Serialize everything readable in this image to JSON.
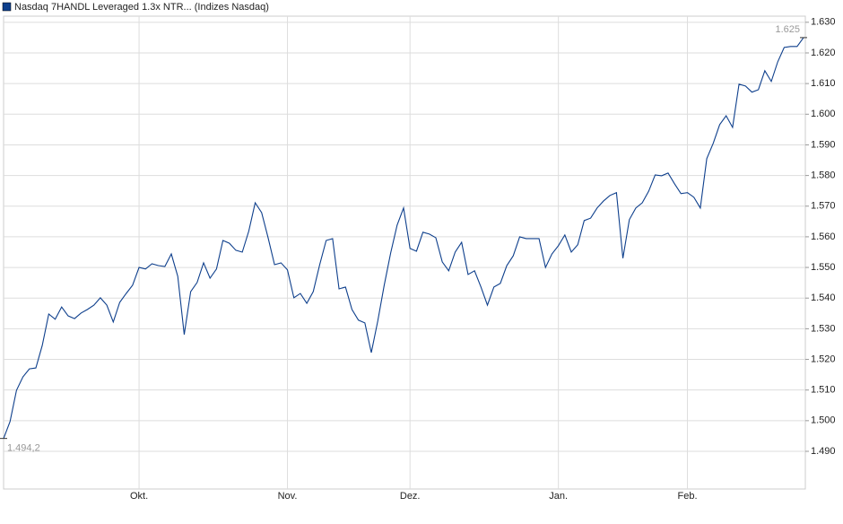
{
  "chart_data": {
    "type": "line",
    "ylim": [
      1.4777,
      1.632
    ],
    "yticks": [
      {
        "value": 1.49,
        "label": "1.490"
      },
      {
        "value": 1.5,
        "label": "1.500"
      },
      {
        "value": 1.51,
        "label": "1.510"
      },
      {
        "value": 1.52,
        "label": "1.520"
      },
      {
        "value": 1.53,
        "label": "1.530"
      },
      {
        "value": 1.54,
        "label": "1.540"
      },
      {
        "value": 1.55,
        "label": "1.550"
      },
      {
        "value": 1.56,
        "label": "1.560"
      },
      {
        "value": 1.57,
        "label": "1.570"
      },
      {
        "value": 1.58,
        "label": "1.580"
      },
      {
        "value": 1.59,
        "label": "1.590"
      },
      {
        "value": 1.6,
        "label": "1.600"
      },
      {
        "value": 1.61,
        "label": "1.610"
      },
      {
        "value": 1.62,
        "label": "1.620"
      },
      {
        "value": 1.63,
        "label": "1.630"
      }
    ],
    "grid": true,
    "categories": [
      null,
      null,
      null,
      null,
      null,
      null,
      null,
      null,
      null,
      null,
      null,
      null,
      null,
      null,
      null,
      null,
      null,
      null,
      null,
      null,
      null,
      "Okt.",
      null,
      null,
      null,
      null,
      null,
      null,
      null,
      null,
      null,
      null,
      null,
      null,
      null,
      null,
      null,
      null,
      null,
      null,
      null,
      null,
      null,
      null,
      "Nov.",
      null,
      null,
      null,
      null,
      null,
      null,
      null,
      null,
      null,
      null,
      null,
      null,
      null,
      null,
      null,
      null,
      null,
      null,
      "Dez.",
      null,
      null,
      null,
      null,
      null,
      null,
      null,
      null,
      null,
      null,
      null,
      null,
      null,
      null,
      null,
      null,
      null,
      null,
      null,
      null,
      null,
      null,
      "Jan.",
      null,
      null,
      null,
      null,
      null,
      null,
      null,
      null,
      null,
      null,
      null,
      null,
      null,
      null,
      null,
      null,
      null,
      null,
      null,
      "Feb.",
      null,
      null,
      null,
      null,
      null,
      null,
      null,
      null,
      null,
      null,
      null,
      null,
      null,
      null,
      null,
      null,
      null,
      null
    ],
    "series": [
      {
        "name": "Nasdaq 7HANDL Leveraged 1.3x NTR... (Indizes Nasdaq)",
        "color": "#0e3f8c",
        "values": [
          1.4942,
          1.4997,
          1.5099,
          1.5143,
          1.5169,
          1.5172,
          1.5246,
          1.5348,
          1.5331,
          1.5371,
          1.5342,
          1.5333,
          1.5351,
          1.5363,
          1.5377,
          1.5401,
          1.5377,
          1.5322,
          1.5386,
          1.5415,
          1.5442,
          1.55,
          1.5495,
          1.5512,
          1.5506,
          1.5503,
          1.5544,
          1.5471,
          1.5281,
          1.5421,
          1.5451,
          1.5515,
          1.5465,
          1.5495,
          1.5588,
          1.5579,
          1.5556,
          1.555,
          1.5618,
          1.5711,
          1.5679,
          1.5597,
          1.5509,
          1.5515,
          1.5492,
          1.5401,
          1.5415,
          1.5383,
          1.5421,
          1.5509,
          1.5588,
          1.5594,
          1.543,
          1.5436,
          1.5363,
          1.5328,
          1.5319,
          1.5222,
          1.5325,
          1.5442,
          1.5547,
          1.5638,
          1.5694,
          1.5562,
          1.5553,
          1.5615,
          1.5609,
          1.5597,
          1.5518,
          1.5489,
          1.555,
          1.5582,
          1.5477,
          1.5489,
          1.5436,
          1.5377,
          1.5436,
          1.5448,
          1.5506,
          1.5538,
          1.56,
          1.5594,
          1.5594,
          1.5594,
          1.55,
          1.5544,
          1.5571,
          1.5606,
          1.555,
          1.5574,
          1.5653,
          1.5661,
          1.5694,
          1.5717,
          1.5735,
          1.5744,
          1.553,
          1.5656,
          1.5694,
          1.5711,
          1.5749,
          1.5802,
          1.5799,
          1.5808,
          1.5773,
          1.5741,
          1.5744,
          1.5729,
          1.5694,
          1.5855,
          1.5905,
          1.5966,
          1.5995,
          1.5957,
          1.6098,
          1.6092,
          1.6072,
          1.608,
          1.6142,
          1.6107,
          1.6171,
          1.6218,
          1.6221,
          1.6221,
          1.625
        ],
        "value_labels": [
          "1.494,2",
          null,
          null,
          null,
          null,
          null,
          null,
          null,
          null,
          null,
          null,
          null,
          null,
          null,
          null,
          null,
          null,
          null,
          null,
          null,
          null,
          null,
          null,
          null,
          null,
          null,
          null,
          null,
          null,
          null,
          null,
          null,
          null,
          null,
          null,
          null,
          null,
          null,
          null,
          null,
          null,
          null,
          null,
          null,
          null,
          null,
          null,
          null,
          null,
          null,
          null,
          null,
          null,
          null,
          null,
          null,
          null,
          null,
          null,
          null,
          null,
          null,
          null,
          null,
          null,
          null,
          null,
          null,
          null,
          null,
          null,
          null,
          null,
          null,
          null,
          null,
          null,
          null,
          null,
          null,
          null,
          null,
          null,
          null,
          null,
          null,
          null,
          null,
          null,
          null,
          null,
          null,
          null,
          null,
          null,
          null,
          null,
          null,
          null,
          null,
          null,
          null,
          null,
          null,
          null,
          null,
          null,
          null,
          null,
          null,
          null,
          null,
          null,
          null,
          null,
          null,
          null,
          null,
          null,
          null,
          null,
          null,
          null,
          null,
          "1.625"
        ]
      }
    ]
  }
}
